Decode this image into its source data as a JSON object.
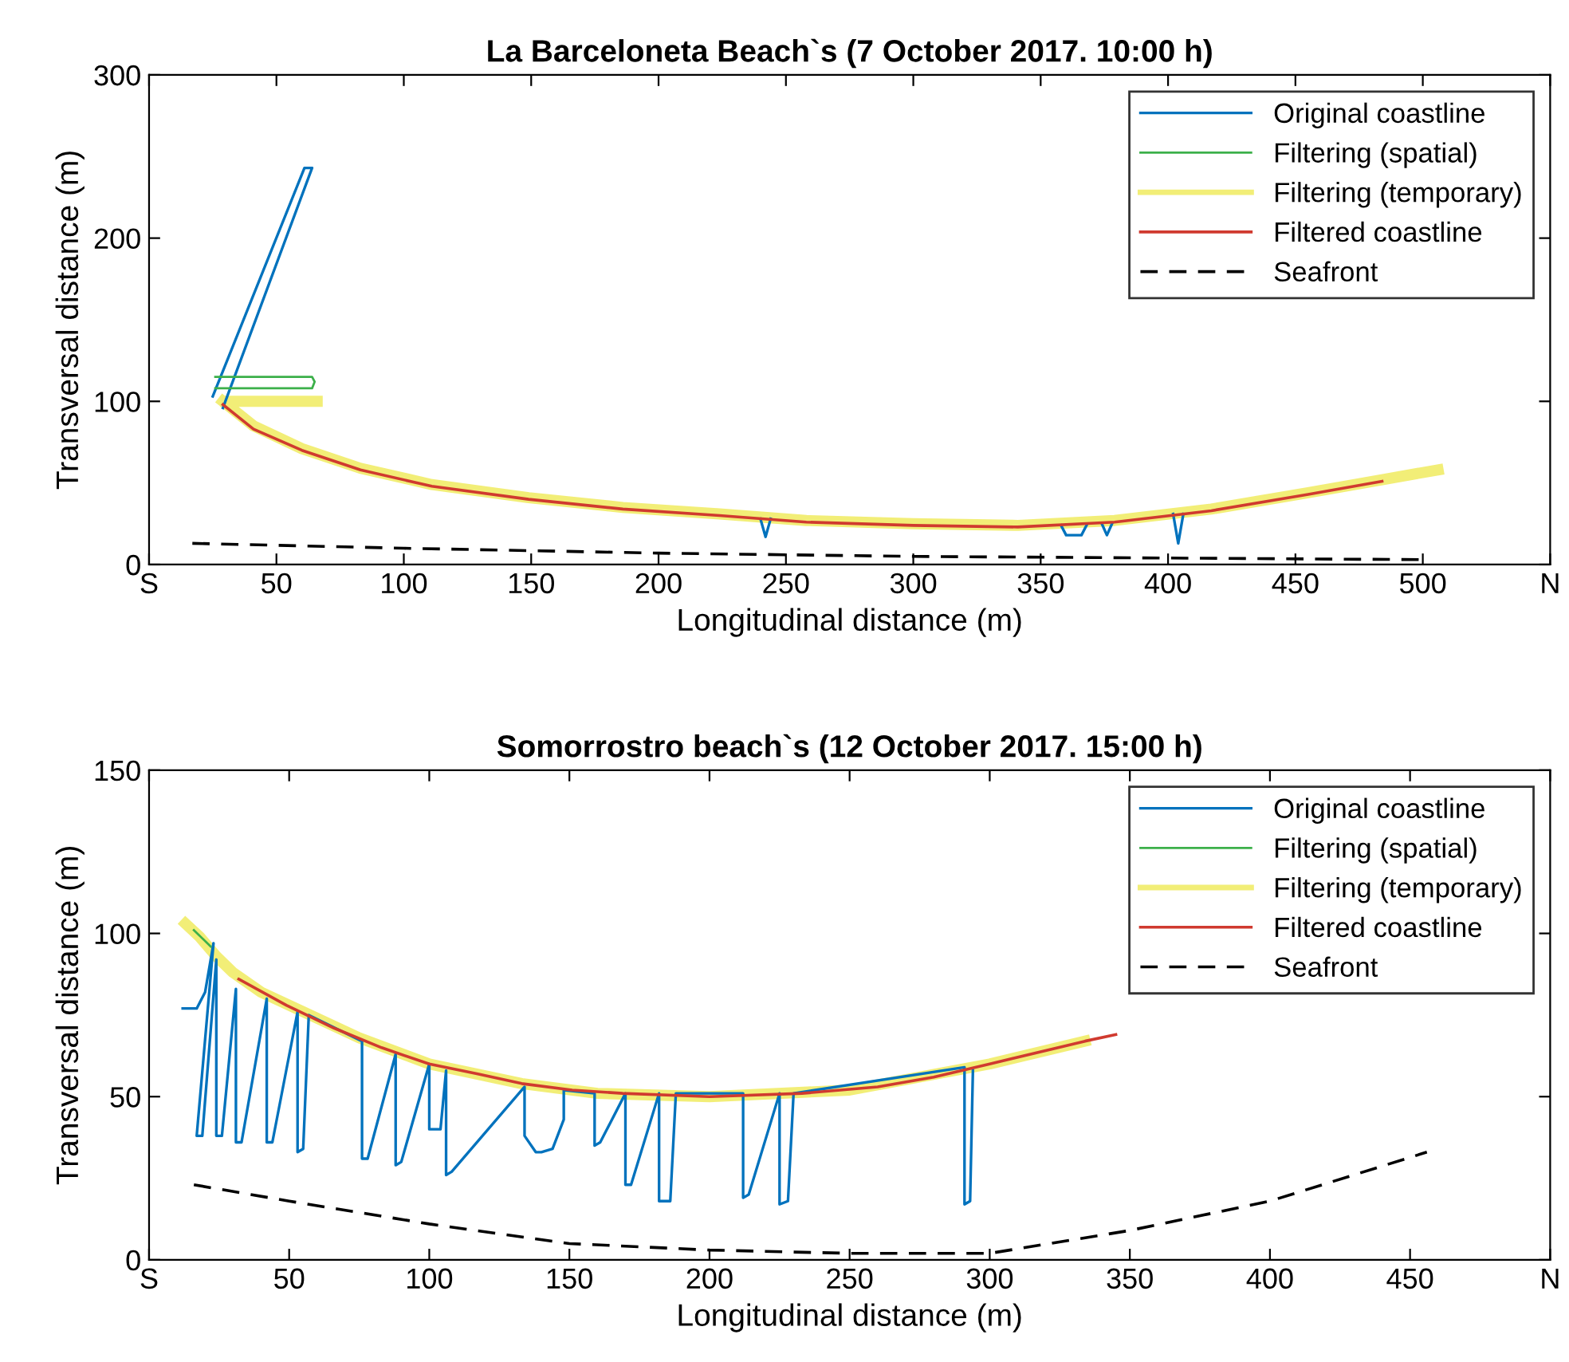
{
  "chart_data": [
    {
      "type": "line",
      "title": "La Barceloneta Beach`s (7 October 2017. 10:00 h)",
      "xlabel": "Longitudinal distance (m)",
      "ylabel": "Transversal distance (m)",
      "xlim": [
        0,
        550
      ],
      "ylim": [
        0,
        300
      ],
      "xticks": [
        {
          "value": 0,
          "label": "S"
        },
        50,
        100,
        150,
        200,
        250,
        300,
        350,
        400,
        450,
        500,
        {
          "value": 550,
          "label": "N"
        }
      ],
      "yticks": [
        0,
        100,
        200,
        300
      ],
      "grid": false,
      "legend": "top right",
      "marker": "none",
      "series": [
        {
          "name": "Original coastline",
          "color": "#0072bd",
          "line_style": "solid",
          "x": [
            29,
            64,
            61,
            25,
            null,
            240,
            242,
            244,
            null,
            358,
            360,
            366,
            368,
            null,
            374,
            376,
            378,
            null,
            402,
            404,
            406
          ],
          "values": [
            96,
            243,
            243,
            103,
            null,
            28,
            17,
            28,
            null,
            24,
            18,
            18,
            24,
            null,
            25,
            18,
            25,
            null,
            31,
            13,
            31
          ]
        },
        {
          "name": "Filtering (spatial)",
          "color": "#3cb04a",
          "line_style": "solid",
          "x": [
            26,
            64,
            65,
            64,
            26
          ],
          "values": [
            115,
            115,
            112,
            108,
            108
          ]
        },
        {
          "name": "Filtering (temporary)",
          "color": "#ede84a",
          "line_style": "solid",
          "x": [
            30,
            66,
            null,
            29,
            41,
            60,
            83,
            111,
            149,
            186,
            224,
            258,
            300,
            341,
            379,
            417,
            455,
            484,
            506
          ],
          "values": [
            100,
            100,
            null,
            100,
            85,
            71,
            59,
            49,
            41,
            35,
            31,
            27,
            25,
            24,
            27,
            34,
            44,
            52,
            58
          ]
        },
        {
          "name": "Filtered coastline",
          "color": "#d03a2f",
          "line_style": "solid",
          "x": [
            29,
            41,
            60,
            83,
            111,
            149,
            186,
            224,
            258,
            300,
            341,
            379,
            417,
            455,
            484
          ],
          "values": [
            98,
            83,
            70,
            58,
            48,
            40,
            34,
            30,
            26,
            24,
            23,
            26,
            33,
            43,
            51
          ]
        },
        {
          "name": "Seafront",
          "color": "#000000",
          "line_style": "dashed",
          "x": [
            17,
            100,
            200,
            300,
            400,
            500
          ],
          "values": [
            13,
            10,
            7,
            5,
            4,
            3
          ]
        }
      ]
    },
    {
      "type": "line",
      "title": "Somorrostro beach`s (12 October 2017. 15:00 h)",
      "xlabel": "Longitudinal distance (m)",
      "ylabel": "Transversal distance (m)",
      "xlim": [
        0,
        500
      ],
      "ylim": [
        0,
        150
      ],
      "xticks": [
        {
          "value": 0,
          "label": "S"
        },
        50,
        100,
        150,
        200,
        250,
        300,
        350,
        400,
        450,
        {
          "value": 500,
          "label": "N"
        }
      ],
      "yticks": [
        0,
        50,
        100,
        150
      ],
      "grid": false,
      "legend": "top right",
      "marker": "none",
      "series": [
        {
          "name": "Original coastline",
          "color": "#0072bd",
          "line_style": "solid",
          "x": [
            12,
            17,
            20,
            23,
            17,
            19,
            24,
            24,
            26,
            31,
            31,
            33,
            42,
            42,
            44,
            53,
            53,
            55,
            57,
            76,
            76,
            78,
            88,
            88,
            90,
            100,
            100,
            104,
            106,
            106,
            108,
            134,
            134,
            138,
            140,
            144,
            148,
            148,
            159,
            159,
            161,
            170,
            170,
            172,
            182,
            182,
            186,
            188,
            212,
            212,
            214,
            225,
            225,
            228,
            230,
            291,
            291,
            293,
            294
          ],
          "values": [
            77,
            77,
            82,
            97,
            38,
            38,
            92,
            38,
            38,
            83,
            36,
            36,
            80,
            36,
            36,
            76,
            33,
            34,
            75,
            67,
            31,
            31,
            63,
            29,
            30,
            60,
            40,
            40,
            58,
            26,
            27,
            53,
            38,
            33,
            33,
            34,
            43,
            52,
            51,
            35,
            36,
            51,
            23,
            23,
            51,
            18,
            18,
            51,
            51,
            19,
            20,
            51,
            17,
            18,
            51,
            59,
            17,
            18,
            58
          ]
        },
        {
          "name": "Filtering (spatial)",
          "color": "#3cb04a",
          "line_style": "solid",
          "x": [
            16,
            22
          ],
          "values": [
            101,
            96
          ]
        },
        {
          "name": "Filtering (temporary)",
          "color": "#ede84a",
          "line_style": "solid",
          "x": [
            13,
            18,
            24,
            30,
            40,
            55,
            75,
            100,
            133,
            160,
            200,
            250,
            300,
            334
          ],
          "values": [
            103,
            99,
            93,
            88,
            82,
            76,
            68,
            60,
            54,
            51,
            50,
            52,
            60,
            67
          ]
        },
        {
          "name": "Filtered coastline",
          "color": "#d03a2f",
          "line_style": "solid",
          "x": [
            32,
            49,
            66,
            83,
            100,
            117,
            133,
            151,
            169,
            200,
            233,
            260,
            280,
            300,
            334,
            345
          ],
          "values": [
            86,
            78,
            71,
            65,
            60,
            57,
            54,
            52,
            51,
            50,
            51,
            53,
            56,
            60,
            67,
            69
          ]
        },
        {
          "name": "Seafront",
          "color": "#000000",
          "line_style": "dashed",
          "x": [
            16,
            50,
            100,
            150,
            200,
            250,
            300,
            350,
            400,
            456
          ],
          "values": [
            23,
            18,
            11,
            5,
            3,
            2,
            2,
            9,
            18,
            33
          ]
        }
      ]
    }
  ]
}
